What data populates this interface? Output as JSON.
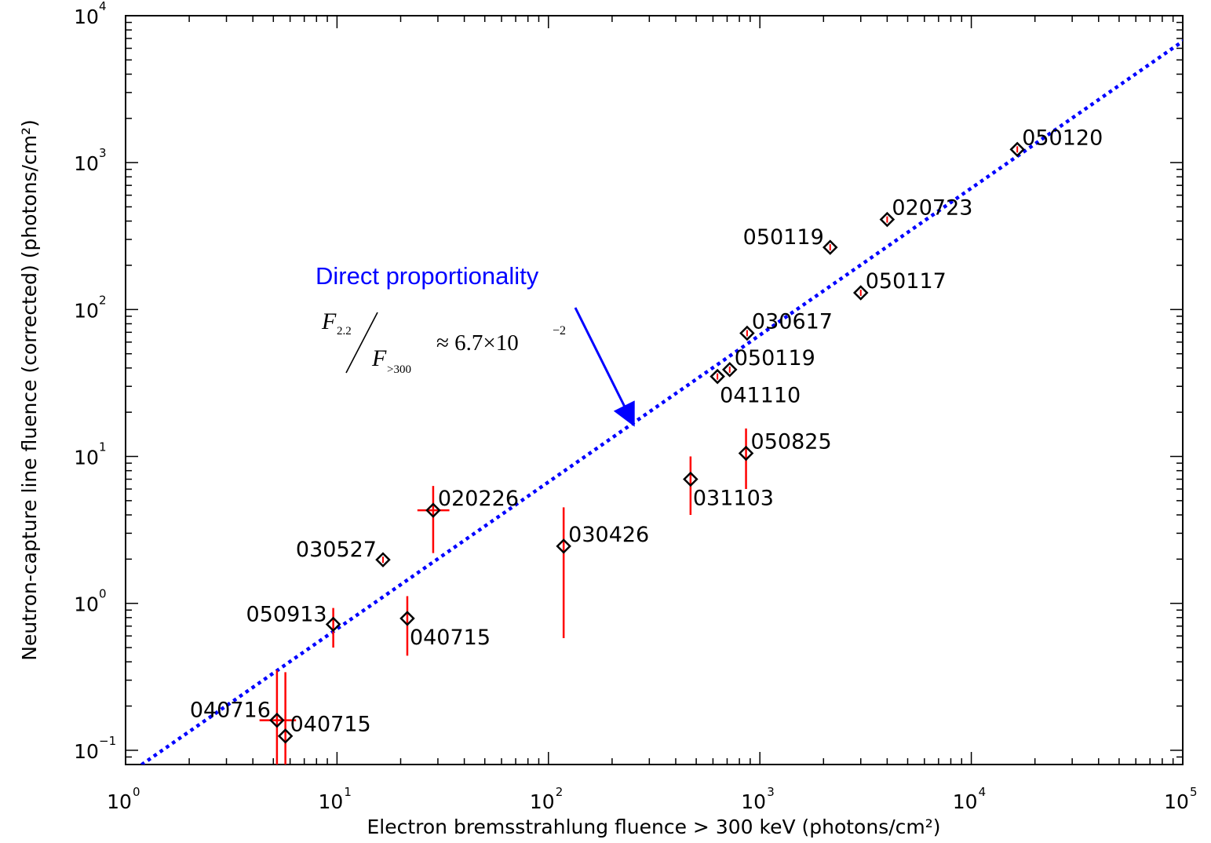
{
  "chart_data": {
    "type": "scatter",
    "xlabel": "Electron bremsstrahlung fluence > 300 keV (photons/cm²)",
    "ylabel": "Neutron-capture line fluence (corrected) (photons/cm²)",
    "xscale": "log",
    "yscale": "log",
    "xlim": [
      1,
      100000
    ],
    "ylim": [
      0.08,
      10000
    ],
    "x_ticks": [
      {
        "value": 1,
        "base": "10",
        "exp": "0"
      },
      {
        "value": 10,
        "base": "10",
        "exp": "1"
      },
      {
        "value": 100,
        "base": "10",
        "exp": "2"
      },
      {
        "value": 1000,
        "base": "10",
        "exp": "3"
      },
      {
        "value": 10000,
        "base": "10",
        "exp": "4"
      },
      {
        "value": 100000,
        "base": "10",
        "exp": "5"
      }
    ],
    "y_ticks": [
      {
        "value": 0.1,
        "base": "10",
        "exp": "−1"
      },
      {
        "value": 1,
        "base": "10",
        "exp": "0"
      },
      {
        "value": 10,
        "base": "10",
        "exp": "1"
      },
      {
        "value": 100,
        "base": "10",
        "exp": "2"
      },
      {
        "value": 1000,
        "base": "10",
        "exp": "3"
      },
      {
        "value": 10000,
        "base": "10",
        "exp": "4"
      }
    ],
    "grid": false,
    "marker": "diamond",
    "marker_color": "#000000",
    "errorbar_color": "#ff0000",
    "points": [
      {
        "label": "050120",
        "x": 16500,
        "y": 1230,
        "label_pos": "right"
      },
      {
        "label": "020723",
        "x": 4000,
        "y": 410,
        "label_pos": "right"
      },
      {
        "label": "050119",
        "x": 2150,
        "y": 265,
        "label_pos": "left"
      },
      {
        "label": "050117",
        "x": 3000,
        "y": 130,
        "label_pos": "right"
      },
      {
        "label": "030617",
        "x": 870,
        "y": 69,
        "label_pos": "right"
      },
      {
        "label": "050119",
        "x": 720,
        "y": 39,
        "label_pos": "right"
      },
      {
        "label": "041110",
        "x": 630,
        "y": 35,
        "label_pos": "below-right"
      },
      {
        "label": "050825",
        "x": 860,
        "y": 10.5,
        "yerr": [
          6.0,
          15.5
        ],
        "label_pos": "right"
      },
      {
        "label": "031103",
        "x": 470,
        "y": 7.0,
        "yerr": [
          4.0,
          10.0
        ],
        "label_pos": "below-right"
      },
      {
        "label": "020226",
        "x": 28.5,
        "y": 4.3,
        "xerr": [
          24,
          34
        ],
        "yerr": [
          2.2,
          6.3
        ],
        "label_pos": "right"
      },
      {
        "label": "030426",
        "x": 118,
        "y": 2.45,
        "yerr": [
          0.58,
          4.5
        ],
        "label_pos": "right"
      },
      {
        "label": "030527",
        "x": 16.5,
        "y": 1.98,
        "label_pos": "left"
      },
      {
        "label": "050913",
        "x": 9.6,
        "y": 0.72,
        "yerr": [
          0.5,
          0.93
        ],
        "label_pos": "left"
      },
      {
        "label": "040715",
        "x": 21.5,
        "y": 0.79,
        "yerr": [
          0.44,
          1.12
        ],
        "label_pos": "below-right"
      },
      {
        "label": "040716",
        "x": 5.2,
        "y": 0.16,
        "xerr": [
          4.3,
          6.4
        ],
        "yerr": [
          0.08,
          0.35
        ],
        "label_pos": "left"
      },
      {
        "label": "040715",
        "x": 5.7,
        "y": 0.125,
        "yerr": [
          0.08,
          0.34
        ],
        "label_pos": "right"
      }
    ],
    "fit_line": {
      "ratio": 0.067,
      "style": "dotted",
      "color": "#0000ff"
    },
    "annotation": {
      "text": "Direct proportionality",
      "color": "#0000ff",
      "arrow_target": {
        "x": 250,
        "y": 17
      }
    },
    "formula": {
      "numerator": "F",
      "numerator_sub": "2.2",
      "denominator": "F",
      "denominator_sub": ">300",
      "rest": "≈ 6.7×10",
      "exp": "−2"
    }
  }
}
